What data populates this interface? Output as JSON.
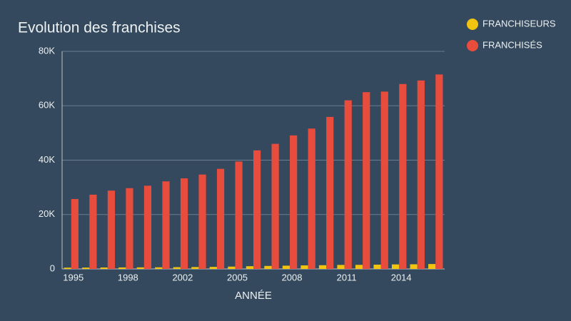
{
  "chart_data": {
    "type": "bar",
    "title": "Evolution des franchises",
    "x_label": "ANNÉE",
    "categories": [
      "1995",
      null,
      null,
      "1998",
      null,
      null,
      "2002",
      null,
      null,
      "2005",
      null,
      null,
      "2008",
      null,
      null,
      "2011",
      null,
      null,
      "2014",
      null,
      null
    ],
    "series": [
      {
        "name": "FRANCHISEURS",
        "color": "#f1c40f",
        "values": [
          470,
          500,
          530,
          550,
          580,
          600,
          650,
          700,
          750,
          850,
          1000,
          1100,
          1200,
          1300,
          1370,
          1470,
          1500,
          1570,
          1660,
          1710,
          1800
        ]
      },
      {
        "name": "FRANCHISÉS",
        "color": "#e74c3c",
        "values": [
          25700,
          27300,
          28800,
          29700,
          30600,
          32200,
          33300,
          34700,
          36800,
          39500,
          43600,
          46000,
          49100,
          51600,
          55900,
          62000,
          65000,
          65200,
          68000,
          69300,
          71500
        ]
      }
    ],
    "ylim": [
      0,
      80000
    ],
    "yticks": [
      0,
      {
        "value": 20000,
        "label": "20K"
      },
      {
        "value": 40000,
        "label": "40K"
      },
      {
        "value": 60000,
        "label": "60K"
      },
      {
        "value": 80000,
        "label": "80K"
      }
    ],
    "grid": true,
    "legend": "top-right"
  }
}
